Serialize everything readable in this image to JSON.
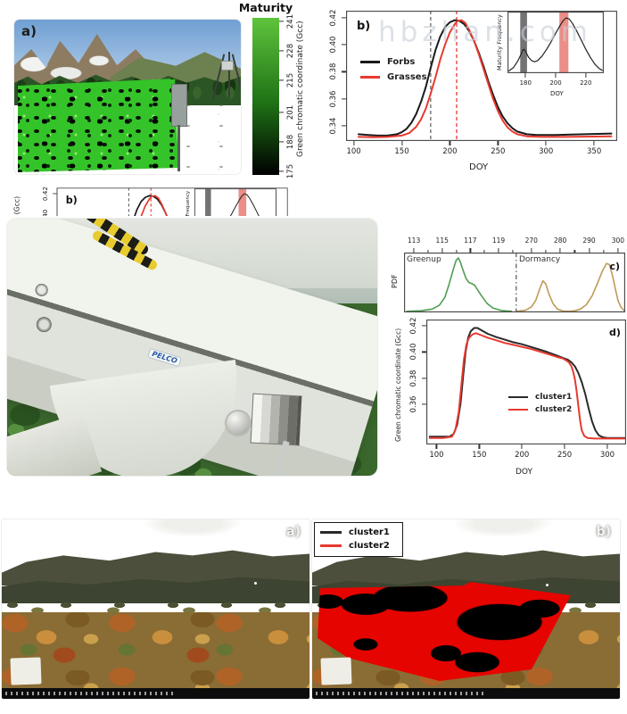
{
  "watermark": "hbzhan.com",
  "panels": {
    "a": "a)",
    "b": "b)",
    "c": "c)",
    "d": "d)"
  },
  "bottom": {
    "a": "a)",
    "b": "b)"
  },
  "colorbar": {
    "title": "Maturity",
    "ticks": [
      241,
      228,
      215,
      201,
      188,
      175
    ],
    "top_color": "#5ec43c",
    "mid_color": "#1e7015",
    "bottom_color": "#000000"
  },
  "camera": {
    "brand": "PELCO"
  },
  "colors": {
    "roi_green": "#35c32a",
    "overlay_red": "#e60400"
  },
  "chart_data": [
    {
      "id": "b_main",
      "type": "line",
      "xlabel": "DOY",
      "ylabel": "Green chromatic coordinate (Gcc)",
      "xlim": [
        92,
        374
      ],
      "ylim": [
        0.329,
        0.425
      ],
      "xticks": [
        100,
        150,
        200,
        250,
        300,
        350
      ],
      "yticks": [
        "0.34",
        "0.36",
        "0.38",
        "0.40",
        "0.42"
      ],
      "legend_position": "left-middle",
      "vlines": [
        {
          "x": 180,
          "color": "#666666"
        },
        {
          "x": 207,
          "color": "#e8392f"
        }
      ],
      "series": [
        {
          "name": "Forbs",
          "color": "#1a1a1a",
          "values": [
            [
              105,
              0.334
            ],
            [
              115,
              0.3335
            ],
            [
              125,
              0.333
            ],
            [
              135,
              0.333
            ],
            [
              145,
              0.334
            ],
            [
              150,
              0.3355
            ],
            [
              155,
              0.338
            ],
            [
              160,
              0.3425
            ],
            [
              165,
              0.349
            ],
            [
              170,
              0.358
            ],
            [
              175,
              0.369
            ],
            [
              180,
              0.383
            ],
            [
              185,
              0.396
            ],
            [
              190,
              0.406
            ],
            [
              195,
              0.413
            ],
            [
              200,
              0.4165
            ],
            [
              205,
              0.418
            ],
            [
              210,
              0.4175
            ],
            [
              215,
              0.415
            ],
            [
              220,
              0.41
            ],
            [
              225,
              0.403
            ],
            [
              230,
              0.394
            ],
            [
              235,
              0.384
            ],
            [
              240,
              0.373
            ],
            [
              245,
              0.363
            ],
            [
              250,
              0.354
            ],
            [
              255,
              0.347
            ],
            [
              260,
              0.342
            ],
            [
              265,
              0.3385
            ],
            [
              270,
              0.336
            ],
            [
              280,
              0.334
            ],
            [
              290,
              0.3335
            ],
            [
              310,
              0.3335
            ],
            [
              340,
              0.334
            ],
            [
              368,
              0.3345
            ]
          ]
        },
        {
          "name": "Grasses",
          "color": "#e8392f",
          "values": [
            [
              105,
              0.332
            ],
            [
              120,
              0.3318
            ],
            [
              135,
              0.332
            ],
            [
              150,
              0.333
            ],
            [
              158,
              0.335
            ],
            [
              165,
              0.3395
            ],
            [
              170,
              0.345
            ],
            [
              175,
              0.353
            ],
            [
              180,
              0.364
            ],
            [
              185,
              0.376
            ],
            [
              190,
              0.389
            ],
            [
              195,
              0.4
            ],
            [
              200,
              0.409
            ],
            [
              205,
              0.415
            ],
            [
              208,
              0.4175
            ],
            [
              212,
              0.418
            ],
            [
              216,
              0.416
            ],
            [
              220,
              0.411
            ],
            [
              225,
              0.403
            ],
            [
              230,
              0.393
            ],
            [
              235,
              0.382
            ],
            [
              240,
              0.371
            ],
            [
              245,
              0.36
            ],
            [
              250,
              0.351
            ],
            [
              255,
              0.344
            ],
            [
              260,
              0.339
            ],
            [
              265,
              0.336
            ],
            [
              270,
              0.334
            ],
            [
              280,
              0.3325
            ],
            [
              295,
              0.332
            ],
            [
              320,
              0.332
            ],
            [
              368,
              0.3325
            ]
          ]
        }
      ]
    },
    {
      "id": "b_inset",
      "type": "line",
      "xlabel": "DOY",
      "ylabel": "Maturity Frequency",
      "xlim": [
        168,
        232
      ],
      "ylim": [
        0,
        1.08
      ],
      "xticks": [
        180,
        200,
        220
      ],
      "bands": [
        {
          "x1": 176.5,
          "x2": 181,
          "color": "#5a5a5a",
          "opacity": 0.85
        },
        {
          "x1": 202.5,
          "x2": 208.5,
          "color": "#e87a72",
          "opacity": 0.85
        }
      ],
      "series": [
        {
          "name": "maturity frequency density",
          "color": "#222222",
          "values": [
            [
              169,
              0.04
            ],
            [
              172,
              0.1
            ],
            [
              175,
              0.22
            ],
            [
              177,
              0.33
            ],
            [
              178,
              0.4
            ],
            [
              179,
              0.42
            ],
            [
              180,
              0.38
            ],
            [
              182,
              0.28
            ],
            [
              184,
              0.22
            ],
            [
              186,
              0.2
            ],
            [
              188,
              0.22
            ],
            [
              191,
              0.3
            ],
            [
              194,
              0.42
            ],
            [
              197,
              0.55
            ],
            [
              200,
              0.7
            ],
            [
              203,
              0.84
            ],
            [
              205,
              0.92
            ],
            [
              207,
              0.97
            ],
            [
              209,
              0.95
            ],
            [
              211,
              0.88
            ],
            [
              214,
              0.74
            ],
            [
              217,
              0.58
            ],
            [
              220,
              0.42
            ],
            [
              223,
              0.28
            ],
            [
              226,
              0.16
            ],
            [
              229,
              0.08
            ],
            [
              231,
              0.05
            ]
          ]
        }
      ]
    },
    {
      "id": "c_green",
      "type": "line",
      "region_label": "Greenup",
      "ylabel": "PDF",
      "xlim": [
        112.3,
        120.2
      ],
      "ylim": [
        0,
        1.1
      ],
      "xticks": [
        113,
        115,
        117,
        119
      ],
      "minor_xticks": [
        114,
        116,
        118,
        120
      ],
      "xtick_side": "top",
      "frame": "openright",
      "series": [
        {
          "name": "greenup date PDF",
          "color": "#4f9e52",
          "values": [
            [
              112.5,
              0.02
            ],
            [
              113.5,
              0.03
            ],
            [
              114.3,
              0.06
            ],
            [
              114.8,
              0.13
            ],
            [
              115.2,
              0.28
            ],
            [
              115.5,
              0.52
            ],
            [
              115.8,
              0.8
            ],
            [
              116.0,
              0.96
            ],
            [
              116.15,
              1.0
            ],
            [
              116.3,
              0.92
            ],
            [
              116.5,
              0.76
            ],
            [
              116.7,
              0.62
            ],
            [
              116.9,
              0.55
            ],
            [
              117.1,
              0.53
            ],
            [
              117.3,
              0.5
            ],
            [
              117.5,
              0.42
            ],
            [
              117.8,
              0.3
            ],
            [
              118.2,
              0.16
            ],
            [
              118.6,
              0.08
            ],
            [
              119.2,
              0.035
            ],
            [
              119.9,
              0.02
            ]
          ]
        }
      ]
    },
    {
      "id": "c_dorm",
      "type": "line",
      "region_label": "Dormancy",
      "xlim": [
        264.5,
        302.5
      ],
      "ylim": [
        0,
        1.1
      ],
      "xticks": [
        270,
        280,
        290,
        300
      ],
      "minor_xticks": [
        275,
        285,
        295
      ],
      "xtick_side": "top",
      "frame": "openleft",
      "edge_divider": true,
      "series": [
        {
          "name": "dormancy date PDF",
          "color": "#c09a58",
          "values": [
            [
              265,
              0.02
            ],
            [
              268,
              0.04
            ],
            [
              270,
              0.1
            ],
            [
              271.5,
              0.22
            ],
            [
              273,
              0.45
            ],
            [
              274,
              0.58
            ],
            [
              275,
              0.52
            ],
            [
              276,
              0.35
            ],
            [
              277.5,
              0.16
            ],
            [
              279,
              0.06
            ],
            [
              281,
              0.025
            ],
            [
              283,
              0.02
            ],
            [
              285,
              0.03
            ],
            [
              287,
              0.06
            ],
            [
              289,
              0.14
            ],
            [
              291,
              0.3
            ],
            [
              293,
              0.55
            ],
            [
              294.5,
              0.75
            ],
            [
              296,
              0.9
            ],
            [
              297,
              0.88
            ],
            [
              298,
              0.7
            ],
            [
              299,
              0.45
            ],
            [
              300,
              0.22
            ],
            [
              301,
              0.1
            ],
            [
              302,
              0.04
            ]
          ]
        }
      ]
    },
    {
      "id": "d_main",
      "type": "line",
      "xlabel": "DOY",
      "ylabel": "Green chromatic coordinate (Gcc)",
      "xlim": [
        88,
        322
      ],
      "ylim": [
        0.329,
        0.425
      ],
      "xticks": [
        100,
        150,
        200,
        250,
        300
      ],
      "yticks": [
        "0.36",
        "0.38",
        "0.40",
        "0.42"
      ],
      "legend_position": "center-right",
      "series": [
        {
          "name": "cluster1",
          "color": "#2a2a2a",
          "values": [
            [
              92,
              0.335
            ],
            [
              105,
              0.335
            ],
            [
              115,
              0.335
            ],
            [
              120,
              0.337
            ],
            [
              124,
              0.344
            ],
            [
              128,
              0.36
            ],
            [
              131,
              0.381
            ],
            [
              134,
              0.4
            ],
            [
              137,
              0.411
            ],
            [
              140,
              0.416
            ],
            [
              144,
              0.4185
            ],
            [
              148,
              0.4185
            ],
            [
              152,
              0.417
            ],
            [
              160,
              0.414
            ],
            [
              170,
              0.4115
            ],
            [
              180,
              0.4095
            ],
            [
              190,
              0.4075
            ],
            [
              200,
              0.406
            ],
            [
              210,
              0.404
            ],
            [
              220,
              0.402
            ],
            [
              230,
              0.4
            ],
            [
              240,
              0.3975
            ],
            [
              248,
              0.3955
            ],
            [
              254,
              0.394
            ],
            [
              258,
              0.392
            ],
            [
              262,
              0.389
            ],
            [
              266,
              0.384
            ],
            [
              270,
              0.377
            ],
            [
              274,
              0.368
            ],
            [
              278,
              0.357
            ],
            [
              282,
              0.347
            ],
            [
              286,
              0.34
            ],
            [
              290,
              0.336
            ],
            [
              295,
              0.3345
            ],
            [
              300,
              0.334
            ],
            [
              310,
              0.334
            ],
            [
              320,
              0.334
            ]
          ]
        },
        {
          "name": "cluster2",
          "color": "#e8392f",
          "values": [
            [
              92,
              0.334
            ],
            [
              108,
              0.334
            ],
            [
              118,
              0.335
            ],
            [
              122,
              0.34
            ],
            [
              126,
              0.354
            ],
            [
              129,
              0.374
            ],
            [
              132,
              0.394
            ],
            [
              135,
              0.406
            ],
            [
              138,
              0.411
            ],
            [
              142,
              0.4135
            ],
            [
              146,
              0.4145
            ],
            [
              152,
              0.413
            ],
            [
              160,
              0.411
            ],
            [
              170,
              0.409
            ],
            [
              180,
              0.407
            ],
            [
              190,
              0.4055
            ],
            [
              200,
              0.404
            ],
            [
              210,
              0.4025
            ],
            [
              220,
              0.4005
            ],
            [
              230,
              0.3985
            ],
            [
              240,
              0.3965
            ],
            [
              248,
              0.395
            ],
            [
              252,
              0.3935
            ],
            [
              255,
              0.392
            ],
            [
              258,
              0.389
            ],
            [
              260,
              0.385
            ],
            [
              262,
              0.379
            ],
            [
              264,
              0.37
            ],
            [
              266,
              0.359
            ],
            [
              268,
              0.348
            ],
            [
              270,
              0.34
            ],
            [
              273,
              0.3355
            ],
            [
              277,
              0.334
            ],
            [
              285,
              0.3335
            ],
            [
              300,
              0.3335
            ],
            [
              320,
              0.3335
            ]
          ]
        }
      ]
    }
  ]
}
